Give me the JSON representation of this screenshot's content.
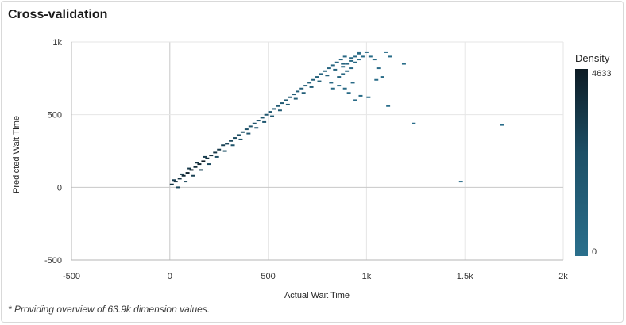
{
  "card": {
    "title": "Cross-validation",
    "footnote": "* Providing overview of 63.9k dimension values."
  },
  "colors": {
    "low": "#2a6f8c",
    "mid": "#1d4f66",
    "high": "#0d1b24",
    "grid": "#e6e6e6",
    "axis_zero": "#c8c8c8",
    "frame": "#b5b5b5"
  },
  "chart_data": {
    "type": "heatmap",
    "title": "Cross-validation",
    "xlabel": "Actual Wait Time",
    "ylabel": "Predicted Wait Time",
    "xlim": [
      -500,
      2000
    ],
    "ylim": [
      -500,
      1000
    ],
    "x_ticks": [
      -500,
      0,
      500,
      1000,
      1500,
      2000
    ],
    "x_tick_labels": [
      "-500",
      "0",
      "500",
      "1k",
      "1.5k",
      "2k"
    ],
    "y_ticks": [
      -500,
      0,
      500,
      1000
    ],
    "y_tick_labels": [
      "-500",
      "0",
      "500",
      "1k"
    ],
    "grid": true,
    "legend": {
      "title": "Density",
      "min": 0,
      "max": 4633,
      "min_label": "0",
      "max_label": "4633",
      "placement": "right"
    },
    "cells": [
      [
        10,
        20,
        2800
      ],
      [
        30,
        40,
        3200
      ],
      [
        50,
        60,
        3000
      ],
      [
        70,
        80,
        3600
      ],
      [
        90,
        100,
        4200
      ],
      [
        110,
        120,
        3900
      ],
      [
        130,
        140,
        3400
      ],
      [
        150,
        160,
        3800
      ],
      [
        170,
        180,
        4633
      ],
      [
        190,
        200,
        3100
      ],
      [
        210,
        220,
        3300
      ],
      [
        230,
        240,
        2700
      ],
      [
        250,
        260,
        2400
      ],
      [
        270,
        290,
        2000
      ],
      [
        290,
        300,
        1900
      ],
      [
        310,
        320,
        1700
      ],
      [
        330,
        340,
        1600
      ],
      [
        350,
        360,
        1500
      ],
      [
        370,
        380,
        1400
      ],
      [
        390,
        400,
        1200
      ],
      [
        410,
        420,
        1100
      ],
      [
        430,
        440,
        1000
      ],
      [
        450,
        460,
        900
      ],
      [
        470,
        480,
        800
      ],
      [
        490,
        500,
        800
      ],
      [
        510,
        520,
        700
      ],
      [
        530,
        540,
        650
      ],
      [
        550,
        560,
        600
      ],
      [
        570,
        580,
        560
      ],
      [
        590,
        600,
        520
      ],
      [
        610,
        620,
        480
      ],
      [
        630,
        640,
        440
      ],
      [
        650,
        660,
        400
      ],
      [
        670,
        680,
        360
      ],
      [
        690,
        700,
        320
      ],
      [
        710,
        720,
        280
      ],
      [
        730,
        740,
        260
      ],
      [
        750,
        760,
        240
      ],
      [
        770,
        780,
        200
      ],
      [
        790,
        800,
        180
      ],
      [
        810,
        820,
        160
      ],
      [
        830,
        840,
        140
      ],
      [
        850,
        860,
        120
      ],
      [
        870,
        880,
        100
      ],
      [
        890,
        900,
        80
      ],
      [
        20,
        50,
        2200
      ],
      [
        60,
        90,
        2500
      ],
      [
        100,
        130,
        2600
      ],
      [
        140,
        170,
        2900
      ],
      [
        180,
        210,
        2300
      ],
      [
        40,
        0,
        1800
      ],
      [
        80,
        40,
        1900
      ],
      [
        120,
        80,
        2100
      ],
      [
        160,
        120,
        2000
      ],
      [
        200,
        160,
        1700
      ],
      [
        240,
        210,
        1500
      ],
      [
        280,
        250,
        1300
      ],
      [
        320,
        290,
        1100
      ],
      [
        360,
        330,
        1000
      ],
      [
        400,
        370,
        900
      ],
      [
        440,
        410,
        780
      ],
      [
        480,
        450,
        700
      ],
      [
        520,
        490,
        620
      ],
      [
        560,
        530,
        560
      ],
      [
        600,
        570,
        500
      ],
      [
        640,
        610,
        450
      ],
      [
        680,
        650,
        400
      ],
      [
        720,
        690,
        350
      ],
      [
        760,
        730,
        300
      ],
      [
        800,
        770,
        250
      ],
      [
        840,
        810,
        200
      ],
      [
        880,
        850,
        160
      ],
      [
        920,
        890,
        120
      ],
      [
        960,
        930,
        80
      ],
      [
        860,
        760,
        140
      ],
      [
        880,
        780,
        130
      ],
      [
        900,
        800,
        110
      ],
      [
        920,
        820,
        90
      ],
      [
        940,
        860,
        70
      ],
      [
        960,
        880,
        50
      ],
      [
        980,
        900,
        40
      ],
      [
        1000,
        930,
        30
      ],
      [
        1020,
        900,
        25
      ],
      [
        880,
        830,
        90
      ],
      [
        900,
        850,
        80
      ],
      [
        920,
        870,
        60
      ],
      [
        940,
        900,
        45
      ],
      [
        960,
        920,
        35
      ],
      [
        1040,
        880,
        20
      ],
      [
        1060,
        820,
        18
      ],
      [
        1050,
        740,
        15
      ],
      [
        1080,
        760,
        12
      ],
      [
        1100,
        930,
        10
      ],
      [
        1120,
        900,
        10
      ],
      [
        1190,
        850,
        8
      ],
      [
        1110,
        560,
        6
      ],
      [
        1240,
        440,
        5
      ],
      [
        1480,
        40,
        4
      ],
      [
        1690,
        430,
        4
      ],
      [
        890,
        680,
        60
      ],
      [
        910,
        650,
        40
      ],
      [
        940,
        600,
        30
      ],
      [
        970,
        630,
        25
      ],
      [
        1010,
        620,
        20
      ],
      [
        930,
        720,
        35
      ],
      [
        860,
        700,
        45
      ],
      [
        830,
        680,
        60
      ],
      [
        820,
        720,
        90
      ]
    ]
  }
}
